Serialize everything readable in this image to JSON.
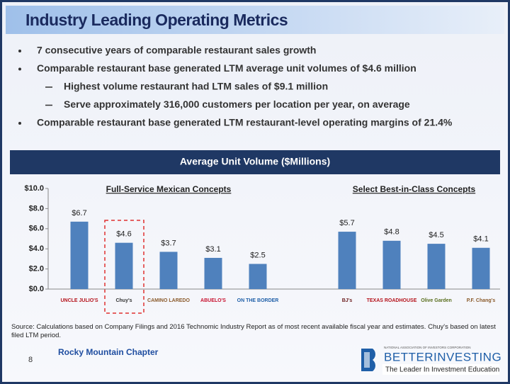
{
  "title": "Industry Leading Operating Metrics",
  "bullets": [
    {
      "text": "7 consecutive years of comparable restaurant sales growth",
      "sub": []
    },
    {
      "text": "Comparable restaurant base generated LTM average unit volumes of $4.6 million",
      "sub": [
        "Highest volume restaurant had LTM sales of $9.1 million",
        "Serve approximately 316,000 customers per location per year, on average"
      ]
    },
    {
      "text": "Comparable restaurant base generated LTM restaurant-level operating margins of 21.4%",
      "sub": []
    }
  ],
  "chart_data": {
    "type": "bar",
    "title": "Average Unit Volume ($Millions)",
    "color": "#4f81bd",
    "ylim": [
      0,
      10
    ],
    "yticks": [
      {
        "value": 0,
        "label": "$0.0"
      },
      {
        "value": 2,
        "label": "$2.0"
      },
      {
        "value": 4,
        "label": "$4.0"
      },
      {
        "value": 6,
        "label": "$6.0"
      },
      {
        "value": 8,
        "label": "$8.0"
      },
      {
        "value": 10,
        "label": "$10.0"
      }
    ],
    "groups": [
      {
        "name": "Full-Service Mexican Concepts",
        "categories": [
          "UNCLE JULIO'S",
          "Chuy's",
          "CAMINO LAREDO",
          "ABUELO'S",
          "ON THE BORDER"
        ],
        "values": [
          6.7,
          4.6,
          3.7,
          3.1,
          2.5
        ],
        "value_labels": [
          "$6.7",
          "$4.6",
          "$3.7",
          "$3.1",
          "$2.5"
        ]
      },
      {
        "name": "Select Best-in-Class Concepts",
        "categories": [
          "BJ's",
          "TEXAS ROADHOUSE",
          "Olive Garden",
          "P.F. Chang's"
        ],
        "values": [
          5.7,
          4.8,
          4.5,
          4.1
        ],
        "value_labels": [
          "$5.7",
          "$4.8",
          "$4.5",
          "$4.1"
        ]
      }
    ]
  },
  "source": "Source: Calculations based on Company Filings and 2016 Technomic Industry Report as of most recent available fiscal year and estimates. Chuy's based on latest filed LTM period.",
  "footer": {
    "page": "8",
    "chapter": "Rocky Mountain Chapter",
    "logo": {
      "org": "NATIONAL ASSOCIATION OF INVESTORS CORPORATION",
      "name": "BETTERINVESTING",
      "tagline": "The Leader In Investment Education"
    }
  }
}
